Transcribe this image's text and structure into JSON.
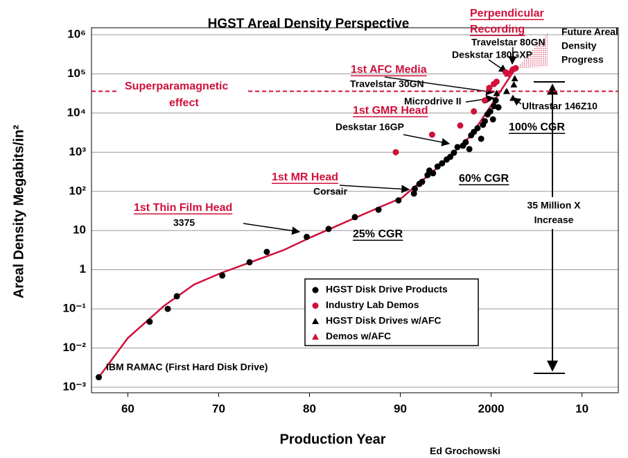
{
  "chart_data": {
    "type": "scatter",
    "title": "HGST Areal Density Perspective",
    "x_label": "Production Year",
    "y_label": "Areal Density Megabits/in²",
    "credit": "Ed Grochowski",
    "log_y": true,
    "grid": true,
    "xlim": [
      1956,
      2014
    ],
    "ylim": [
      0.001,
      1000000
    ],
    "xticks": [
      {
        "value": 1960,
        "label": "60"
      },
      {
        "value": 1970,
        "label": "70"
      },
      {
        "value": 1980,
        "label": "80"
      },
      {
        "value": 1990,
        "label": "90"
      },
      2000,
      {
        "value": 2010,
        "label": "10"
      }
    ],
    "yticks": [
      {
        "value": 0.001,
        "label": "10⁻³"
      },
      {
        "value": 0.01,
        "label": "10⁻²"
      },
      {
        "value": 0.1,
        "label": "10⁻¹"
      },
      1,
      10,
      {
        "value": 100,
        "label": "10²"
      },
      {
        "value": 1000,
        "label": "10³"
      },
      {
        "value": 10000,
        "label": "10⁴"
      },
      {
        "value": 100000,
        "label": "10⁵"
      },
      {
        "value": 1000000,
        "label": "10⁶"
      }
    ],
    "series": [
      {
        "name": "HGST Disk Drive Products",
        "color": "#000000",
        "marker": "circle",
        "x": [
          1956.8,
          1962.4,
          1964.4,
          1965.4,
          1970.4,
          1973.4,
          1975.3,
          1979.7,
          1982.1,
          1985.0,
          1987.6,
          1989.8,
          1991.5,
          1991.6,
          1992.1,
          1992.4,
          1993.0,
          1993.2,
          1993.6,
          1994.1,
          1994.6,
          1995.1,
          1995.5,
          1995.9,
          1996.3,
          1996.9,
          1997.2,
          1997.6,
          1997.8,
          1998.1,
          1998.5,
          1998.9,
          1999.1,
          1999.3,
          1999.6,
          1999.9,
          2000.2,
          2000.3,
          2000.5,
          2000.8
        ],
        "values": [
          0.0018,
          0.047,
          0.1,
          0.21,
          0.71,
          1.55,
          2.85,
          6.9,
          11,
          22,
          34,
          59,
          88,
          117,
          155,
          175,
          260,
          340,
          290,
          430,
          520,
          650,
          760,
          970,
          1350,
          1470,
          1800,
          1200,
          2700,
          3300,
          4100,
          2200,
          5000,
          6200,
          9200,
          11000,
          6900,
          15000,
          21000,
          14000
        ]
      },
      {
        "name": "Industry Lab Demos",
        "color": "#d0103a",
        "marker": "circle",
        "x": [
          1989.5,
          1993.5,
          1996.6,
          1998.1,
          1999.3,
          1999.8,
          2000.3,
          2000.6,
          2001.6,
          2002.4,
          2002.7
        ],
        "values": [
          1000,
          2800,
          4800,
          11000,
          21000,
          44000,
          55000,
          63000,
          110000,
          130000,
          140000
        ]
      },
      {
        "name": "HGST Disk Drives w/AFC",
        "color": "#000000",
        "marker": "triangle",
        "x": [
          2000.6,
          2001.7,
          2002.4,
          2002.5,
          2002.6
        ],
        "values": [
          32000,
          36000,
          24000,
          53000,
          76000
        ]
      },
      {
        "name": "Demos w/AFC",
        "color": "#d0103a",
        "marker": "triangle",
        "x": [
          2001.8,
          2002.1
        ],
        "values": [
          100000,
          115000
        ]
      }
    ],
    "trend_line": {
      "color": "#d0103a",
      "x": [
        1956.8,
        1960,
        1964,
        1967.3,
        1970.3,
        1974.1,
        1977.2,
        1980.2,
        1984,
        1987.9,
        1990.2,
        1991.5,
        1994.7,
        1997.8,
        2000.1,
        2002.7
      ],
      "values": [
        0.0018,
        0.018,
        0.12,
        0.42,
        0.83,
        1.74,
        3.2,
        6.8,
        16.6,
        41,
        69,
        126,
        525,
        2700,
        17000,
        140000
      ]
    },
    "superparamagnetic_limit": 36000,
    "annotations": [
      [
        "Perpendicular",
        "Recording"
      ],
      [
        "Future Areal",
        "Density",
        "Progress"
      ],
      [
        "Travelstar 80GN"
      ],
      [
        "Deskstar 180GXP"
      ],
      [
        "1st AFC Media"
      ],
      [
        "Travelstar 30GN"
      ],
      [
        "Superparamagnetic",
        "effect"
      ],
      [
        "Microdrive II"
      ],
      [
        "Ultrastar 146Z10"
      ],
      [
        "1st GMR Head"
      ],
      [
        "Deskstar 16GP"
      ],
      [
        "100% CGR"
      ],
      [
        "60% CGR"
      ],
      [
        "1st MR Head"
      ],
      [
        "Corsair"
      ],
      [
        "1st Thin Film Head"
      ],
      [
        "3375"
      ],
      [
        "25% CGR"
      ],
      [
        "35 Million X",
        "Increase"
      ],
      [
        "IBM RAMAC (First Hard Disk Drive)"
      ]
    ]
  }
}
